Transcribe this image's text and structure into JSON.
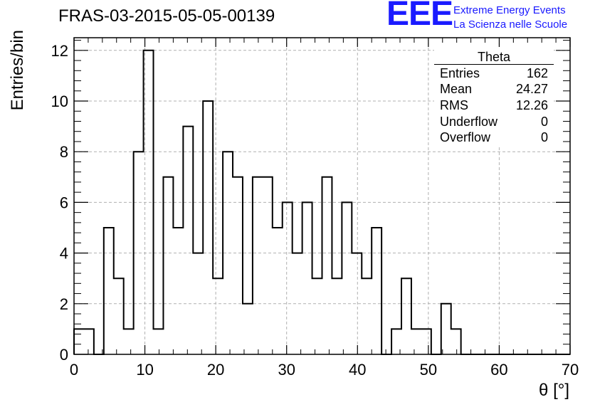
{
  "title": "FRAS-03-2015-05-05-00139",
  "logo": {
    "mark": "EEE",
    "line1": "Extreme Energy Events",
    "line2": "La Scienza nelle Scuole",
    "color": "#1a1aff"
  },
  "stats": {
    "title": "Theta",
    "rows": [
      {
        "label": "Entries",
        "value": "162"
      },
      {
        "label": "Mean",
        "value": "24.27"
      },
      {
        "label": "RMS",
        "value": "12.26"
      },
      {
        "label": "Underflow",
        "value": "0"
      },
      {
        "label": "Overflow",
        "value": "0"
      }
    ]
  },
  "chart_data": {
    "type": "bar",
    "style": "step-histogram",
    "title": "FRAS-03-2015-05-05-00139",
    "xlabel": "θ [°]",
    "ylabel": "Entries/bin",
    "xlim": [
      0,
      70
    ],
    "ylim": [
      0,
      12.5
    ],
    "xticks": [
      0,
      10,
      20,
      30,
      40,
      50,
      60,
      70
    ],
    "yticks": [
      0,
      2,
      4,
      6,
      8,
      10,
      12
    ],
    "grid": true,
    "line_color": "#000000",
    "bin_edges_start": 0,
    "bin_width": 1.4,
    "values": [
      1,
      1,
      0,
      5,
      3,
      1,
      8,
      12,
      1,
      7,
      5,
      9,
      4,
      10,
      3,
      8,
      7,
      2,
      7,
      7,
      5,
      6,
      4,
      6,
      3,
      7,
      3,
      6,
      4,
      3,
      5,
      0,
      1,
      3,
      1,
      1,
      0,
      2,
      1,
      0,
      0,
      0,
      0,
      0,
      0,
      0,
      0,
      0,
      0,
      0
    ]
  }
}
